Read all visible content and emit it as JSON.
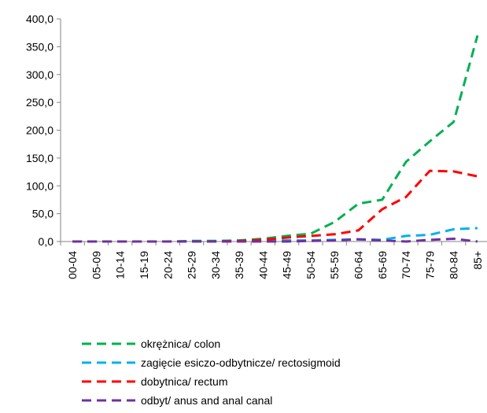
{
  "chart_data": {
    "type": "line",
    "title": "",
    "xlabel": "",
    "ylabel": "",
    "categories": [
      "00-04",
      "05-09",
      "10-14",
      "15-19",
      "20-24",
      "25-29",
      "30-34",
      "35-39",
      "40-44",
      "45-49",
      "50-54",
      "55-59",
      "60-64",
      "65-69",
      "70-74",
      "75-79",
      "80-84",
      "85+"
    ],
    "y_ticks": [
      "0,0",
      "50,0",
      "100,0",
      "150,0",
      "200,0",
      "250,0",
      "300,0",
      "350,0",
      "400,0"
    ],
    "ylim": [
      0,
      400
    ],
    "grid": false,
    "legend_position": "bottom",
    "series": [
      {
        "name": "okrężnica/ colon",
        "color": "#00B050",
        "values": [
          0,
          0,
          0,
          0,
          0,
          1,
          1,
          2,
          5,
          10,
          14,
          35,
          68,
          75,
          143,
          180,
          215,
          370
        ]
      },
      {
        "name": "zagięcie esiczo-odbytnicze/ rectosigmoid",
        "color": "#00B0F0",
        "values": [
          0,
          0,
          0,
          0,
          0,
          0,
          0,
          0,
          1,
          2,
          2,
          3,
          4,
          3,
          10,
          12,
          22,
          24
        ]
      },
      {
        "name": "dobytnica/ rectum",
        "color": "#FF0000",
        "values": [
          0,
          0,
          0,
          0,
          0,
          0,
          0,
          1,
          3,
          7,
          10,
          13,
          20,
          58,
          80,
          127,
          126,
          117
        ]
      },
      {
        "name": "odbyt/ anus and anal canal",
        "color": "#7030A0",
        "values": [
          0,
          0,
          0,
          0,
          0,
          0,
          0,
          0,
          0,
          0,
          1,
          2,
          4,
          2,
          0,
          3,
          5,
          0
        ]
      }
    ]
  }
}
